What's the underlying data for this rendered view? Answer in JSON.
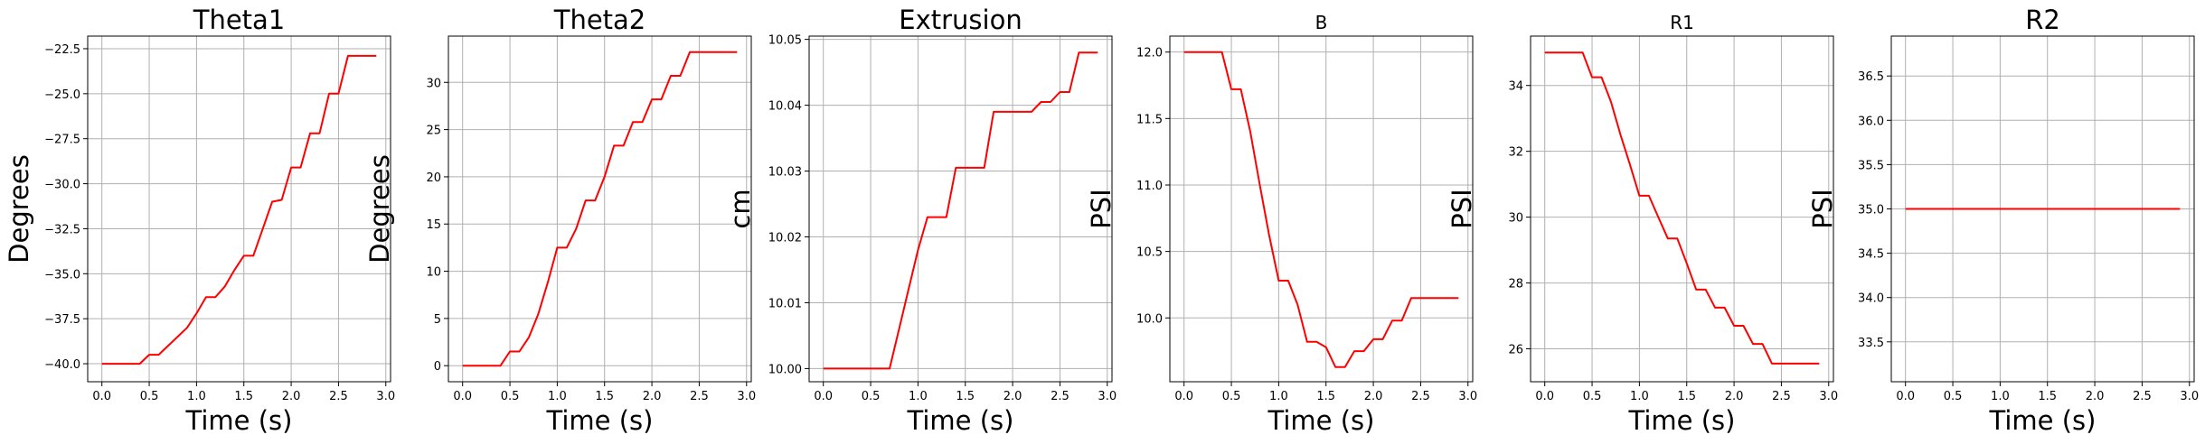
{
  "chart_data": [
    {
      "type": "line",
      "title": "Theta1",
      "xlabel": "Time (s)",
      "ylabel": "Degrees",
      "xlim": [
        -0.15,
        3.05
      ],
      "ylim": [
        -41.0,
        -21.8
      ],
      "xticks": [
        0.0,
        0.5,
        1.0,
        1.5,
        2.0,
        2.5,
        3.0
      ],
      "xtick_labels": [
        "0.0",
        "0.5",
        "1.0",
        "1.5",
        "2.0",
        "2.5",
        "3.0"
      ],
      "yticks": [
        -40.0,
        -37.5,
        -35.0,
        -32.5,
        -30.0,
        -27.5,
        -25.0,
        -22.5
      ],
      "ytick_labels": [
        "−40.0",
        "−37.5",
        "−35.0",
        "−32.5",
        "−30.0",
        "−27.5",
        "−25.0",
        "−22.5"
      ],
      "grid": true,
      "series": [
        {
          "color": "#ff0000",
          "x": [
            0.0,
            0.1,
            0.2,
            0.3,
            0.4,
            0.5,
            0.6,
            0.7,
            0.8,
            0.9,
            1.0,
            1.1,
            1.2,
            1.3,
            1.4,
            1.5,
            1.6,
            1.7,
            1.8,
            1.9,
            2.0,
            2.1,
            2.2,
            2.3,
            2.4,
            2.5,
            2.6,
            2.7,
            2.8,
            2.9
          ],
          "y": [
            -40.0,
            -40.0,
            -40.0,
            -40.0,
            -40.0,
            -39.5,
            -39.5,
            -39.0,
            -38.5,
            -38.0,
            -37.2,
            -36.3,
            -36.3,
            -35.7,
            -34.8,
            -34.0,
            -34.0,
            -32.5,
            -31.0,
            -30.9,
            -29.1,
            -29.1,
            -27.2,
            -27.2,
            -25.0,
            -25.0,
            -22.9,
            -22.9,
            -22.9,
            -22.9
          ]
        }
      ]
    },
    {
      "type": "line",
      "title": "Theta2",
      "xlabel": "Time (s)",
      "ylabel": "Degrees",
      "xlim": [
        -0.15,
        3.05
      ],
      "ylim": [
        -1.7,
        34.9
      ],
      "xticks": [
        0.0,
        0.5,
        1.0,
        1.5,
        2.0,
        2.5,
        3.0
      ],
      "xtick_labels": [
        "0.0",
        "0.5",
        "1.0",
        "1.5",
        "2.0",
        "2.5",
        "3.0"
      ],
      "yticks": [
        0,
        5,
        10,
        15,
        20,
        25,
        30
      ],
      "ytick_labels": [
        "0",
        "5",
        "10",
        "15",
        "20",
        "25",
        "30"
      ],
      "grid": true,
      "series": [
        {
          "color": "#ff0000",
          "x": [
            0.0,
            0.1,
            0.2,
            0.3,
            0.4,
            0.5,
            0.6,
            0.7,
            0.8,
            0.9,
            1.0,
            1.1,
            1.2,
            1.3,
            1.4,
            1.5,
            1.6,
            1.7,
            1.8,
            1.9,
            2.0,
            2.1,
            2.2,
            2.3,
            2.4,
            2.5,
            2.6,
            2.7,
            2.8,
            2.9
          ],
          "y": [
            0.0,
            0.0,
            0.0,
            0.0,
            0.0,
            1.5,
            1.5,
            3.0,
            5.5,
            8.8,
            12.5,
            12.5,
            14.5,
            17.5,
            17.5,
            20.0,
            23.3,
            23.3,
            25.8,
            25.8,
            28.2,
            28.2,
            30.7,
            30.7,
            33.2,
            33.2,
            33.2,
            33.2,
            33.2,
            33.2
          ]
        }
      ]
    },
    {
      "type": "line",
      "title": "Extrusion",
      "xlabel": "Time (s)",
      "ylabel": "cm",
      "xlim": [
        -0.15,
        3.05
      ],
      "ylim": [
        9.998,
        10.0505
      ],
      "xticks": [
        0.0,
        0.5,
        1.0,
        1.5,
        2.0,
        2.5,
        3.0
      ],
      "xtick_labels": [
        "0.0",
        "0.5",
        "1.0",
        "1.5",
        "2.0",
        "2.5",
        "3.0"
      ],
      "yticks": [
        10.0,
        10.01,
        10.02,
        10.03,
        10.04,
        10.05
      ],
      "ytick_labels": [
        "10.00",
        "10.01",
        "10.02",
        "10.03",
        "10.04",
        "10.05"
      ],
      "grid": true,
      "series": [
        {
          "color": "#ff0000",
          "x": [
            0.0,
            0.1,
            0.2,
            0.3,
            0.4,
            0.5,
            0.6,
            0.7,
            0.8,
            0.9,
            1.0,
            1.1,
            1.2,
            1.3,
            1.4,
            1.5,
            1.6,
            1.7,
            1.8,
            1.9,
            2.0,
            2.1,
            2.2,
            2.3,
            2.4,
            2.5,
            2.6,
            2.7,
            2.8,
            2.9
          ],
          "y": [
            10.0,
            10.0,
            10.0,
            10.0,
            10.0,
            10.0,
            10.0,
            10.0,
            10.006,
            10.012,
            10.018,
            10.023,
            10.023,
            10.023,
            10.0305,
            10.0305,
            10.0305,
            10.0305,
            10.039,
            10.039,
            10.039,
            10.039,
            10.039,
            10.0405,
            10.0405,
            10.042,
            10.042,
            10.048,
            10.048,
            10.048
          ]
        }
      ]
    },
    {
      "type": "line",
      "title": "B",
      "xlabel": "Time (s)",
      "ylabel": "PSI",
      "xlim": [
        -0.15,
        3.05
      ],
      "ylim": [
        9.52,
        12.12
      ],
      "xticks": [
        0.0,
        0.5,
        1.0,
        1.5,
        2.0,
        2.5,
        3.0
      ],
      "xtick_labels": [
        "0.0",
        "0.5",
        "1.0",
        "1.5",
        "2.0",
        "2.5",
        "3.0"
      ],
      "yticks": [
        10.0,
        10.5,
        11.0,
        11.5,
        12.0
      ],
      "ytick_labels": [
        "10.0",
        "10.5",
        "11.0",
        "11.5",
        "12.0"
      ],
      "grid": true,
      "series": [
        {
          "color": "#ff0000",
          "x": [
            0.0,
            0.1,
            0.2,
            0.3,
            0.4,
            0.5,
            0.6,
            0.7,
            0.8,
            0.9,
            1.0,
            1.1,
            1.2,
            1.3,
            1.4,
            1.5,
            1.6,
            1.7,
            1.8,
            1.9,
            2.0,
            2.1,
            2.2,
            2.3,
            2.4,
            2.5,
            2.6,
            2.7,
            2.8,
            2.9
          ],
          "y": [
            12.0,
            12.0,
            12.0,
            12.0,
            12.0,
            11.72,
            11.72,
            11.4,
            11.0,
            10.62,
            10.28,
            10.28,
            10.1,
            9.82,
            9.82,
            9.78,
            9.63,
            9.63,
            9.75,
            9.75,
            9.84,
            9.84,
            9.98,
            9.98,
            10.15,
            10.15,
            10.15,
            10.15,
            10.15,
            10.15
          ]
        }
      ]
    },
    {
      "type": "line",
      "title": "R1",
      "xlabel": "Time (s)",
      "ylabel": "PSI",
      "xlim": [
        -0.15,
        3.05
      ],
      "ylim": [
        25.0,
        35.5
      ],
      "xticks": [
        0.0,
        0.5,
        1.0,
        1.5,
        2.0,
        2.5,
        3.0
      ],
      "xtick_labels": [
        "0.0",
        "0.5",
        "1.0",
        "1.5",
        "2.0",
        "2.5",
        "3.0"
      ],
      "yticks": [
        26,
        28,
        30,
        32,
        34
      ],
      "ytick_labels": [
        "26",
        "28",
        "30",
        "32",
        "34"
      ],
      "grid": true,
      "series": [
        {
          "color": "#ff0000",
          "x": [
            0.0,
            0.1,
            0.2,
            0.3,
            0.4,
            0.5,
            0.6,
            0.7,
            0.8,
            0.9,
            1.0,
            1.1,
            1.2,
            1.3,
            1.4,
            1.5,
            1.6,
            1.7,
            1.8,
            1.9,
            2.0,
            2.1,
            2.2,
            2.3,
            2.4,
            2.5,
            2.6,
            2.7,
            2.8,
            2.9
          ],
          "y": [
            35.0,
            35.0,
            35.0,
            35.0,
            35.0,
            34.25,
            34.25,
            33.5,
            32.5,
            31.6,
            30.65,
            30.65,
            30.0,
            29.35,
            29.35,
            28.6,
            27.8,
            27.8,
            27.25,
            27.25,
            26.7,
            26.7,
            26.15,
            26.15,
            25.55,
            25.55,
            25.55,
            25.55,
            25.55,
            25.55
          ]
        }
      ]
    },
    {
      "type": "line",
      "title": "R2",
      "xlabel": "Time (s)",
      "ylabel": "PSI",
      "xlim": [
        -0.15,
        3.05
      ],
      "ylim": [
        33.05,
        36.95
      ],
      "xticks": [
        0.0,
        0.5,
        1.0,
        1.5,
        2.0,
        2.5,
        3.0
      ],
      "xtick_labels": [
        "0.0",
        "0.5",
        "1.0",
        "1.5",
        "2.0",
        "2.5",
        "3.0"
      ],
      "yticks": [
        33.5,
        34.0,
        34.5,
        35.0,
        35.5,
        36.0,
        36.5
      ],
      "ytick_labels": [
        "33.5",
        "34.0",
        "34.5",
        "35.0",
        "35.5",
        "36.0",
        "36.5"
      ],
      "grid": true,
      "series": [
        {
          "color": "#ff0000",
          "x": [
            0.0,
            0.1,
            0.2,
            0.3,
            0.4,
            0.5,
            0.6,
            0.7,
            0.8,
            0.9,
            1.0,
            1.1,
            1.2,
            1.3,
            1.4,
            1.5,
            1.6,
            1.7,
            1.8,
            1.9,
            2.0,
            2.1,
            2.2,
            2.3,
            2.4,
            2.5,
            2.6,
            2.7,
            2.8,
            2.9
          ],
          "y": [
            35.0,
            35.0,
            35.0,
            35.0,
            35.0,
            35.0,
            35.0,
            35.0,
            35.0,
            35.0,
            35.0,
            35.0,
            35.0,
            35.0,
            35.0,
            35.0,
            35.0,
            35.0,
            35.0,
            35.0,
            35.0,
            35.0,
            35.0,
            35.0,
            35.0,
            35.0,
            35.0,
            35.0,
            35.0,
            35.0
          ]
        }
      ]
    }
  ]
}
